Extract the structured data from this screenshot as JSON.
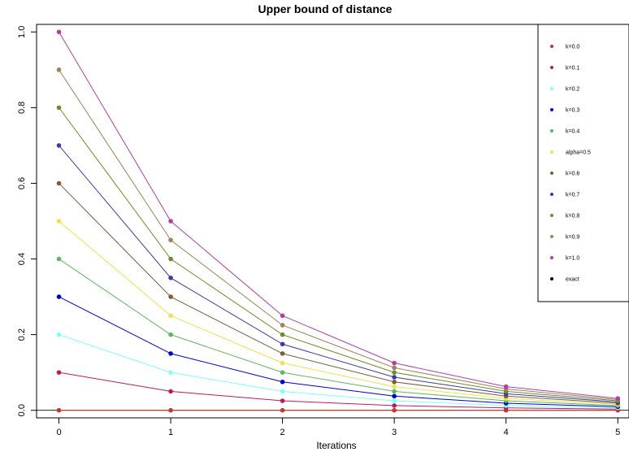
{
  "chart_data": {
    "type": "line",
    "title": "Upper bound of distance",
    "xlabel": "Iterations",
    "ylabel": "",
    "x": [
      0,
      1,
      2,
      3,
      4,
      5
    ],
    "xlim": [
      -0.2,
      5.1
    ],
    "ylim": [
      -0.02,
      1.02
    ],
    "x_ticks": [
      "0",
      "1",
      "2",
      "3",
      "4",
      "5"
    ],
    "y_ticks": [
      "0.0",
      "0.2",
      "0.4",
      "0.6",
      "0.8",
      "1.0"
    ],
    "reference_line_y": 0,
    "grid": false,
    "legend_placement": "right",
    "series": [
      {
        "name": "k=0.0",
        "color": "#c0392b",
        "values": [
          0.0,
          0.0,
          0.0,
          0.0,
          0.0,
          0.0
        ]
      },
      {
        "name": "k=0.1",
        "color": "#c2185b",
        "values": [
          0.1,
          0.05,
          0.025,
          0.0125,
          0.00625,
          0.003125
        ]
      },
      {
        "name": "k=0.2",
        "color": "#80ffff",
        "values": [
          0.2,
          0.1,
          0.05,
          0.025,
          0.0125,
          0.00625
        ]
      },
      {
        "name": "k=0.3",
        "color": "#0000cc",
        "values": [
          0.3,
          0.15,
          0.075,
          0.0375,
          0.01875,
          0.009375
        ]
      },
      {
        "name": "k=0.4",
        "color": "#5cb85c",
        "values": [
          0.4,
          0.2,
          0.1,
          0.05,
          0.025,
          0.0125
        ]
      },
      {
        "name": "alpha=0.5",
        "color": "#f0e050",
        "values": [
          0.5,
          0.25,
          0.125,
          0.0625,
          0.03125,
          0.015625
        ]
      },
      {
        "name": "k=0.6",
        "color": "#7a5c3a",
        "values": [
          0.6,
          0.3,
          0.15,
          0.075,
          0.0375,
          0.01875
        ]
      },
      {
        "name": "k=0.7",
        "color": "#3a3aaa",
        "values": [
          0.7,
          0.35,
          0.175,
          0.0875,
          0.04375,
          0.021875
        ]
      },
      {
        "name": "k=0.8",
        "color": "#6b8e23",
        "values": [
          0.8,
          0.4,
          0.2,
          0.1,
          0.05,
          0.025
        ]
      },
      {
        "name": "k=0.9",
        "color": "#a0825a",
        "values": [
          0.9,
          0.45,
          0.225,
          0.1125,
          0.05625,
          0.028125
        ]
      },
      {
        "name": "k=1.0",
        "color": "#b040a0",
        "values": [
          1.0,
          0.5,
          0.25,
          0.125,
          0.0625,
          0.03125
        ]
      },
      {
        "name": "exact",
        "color": "#000000",
        "values": [
          null,
          null,
          null,
          null,
          null,
          null
        ]
      }
    ]
  }
}
